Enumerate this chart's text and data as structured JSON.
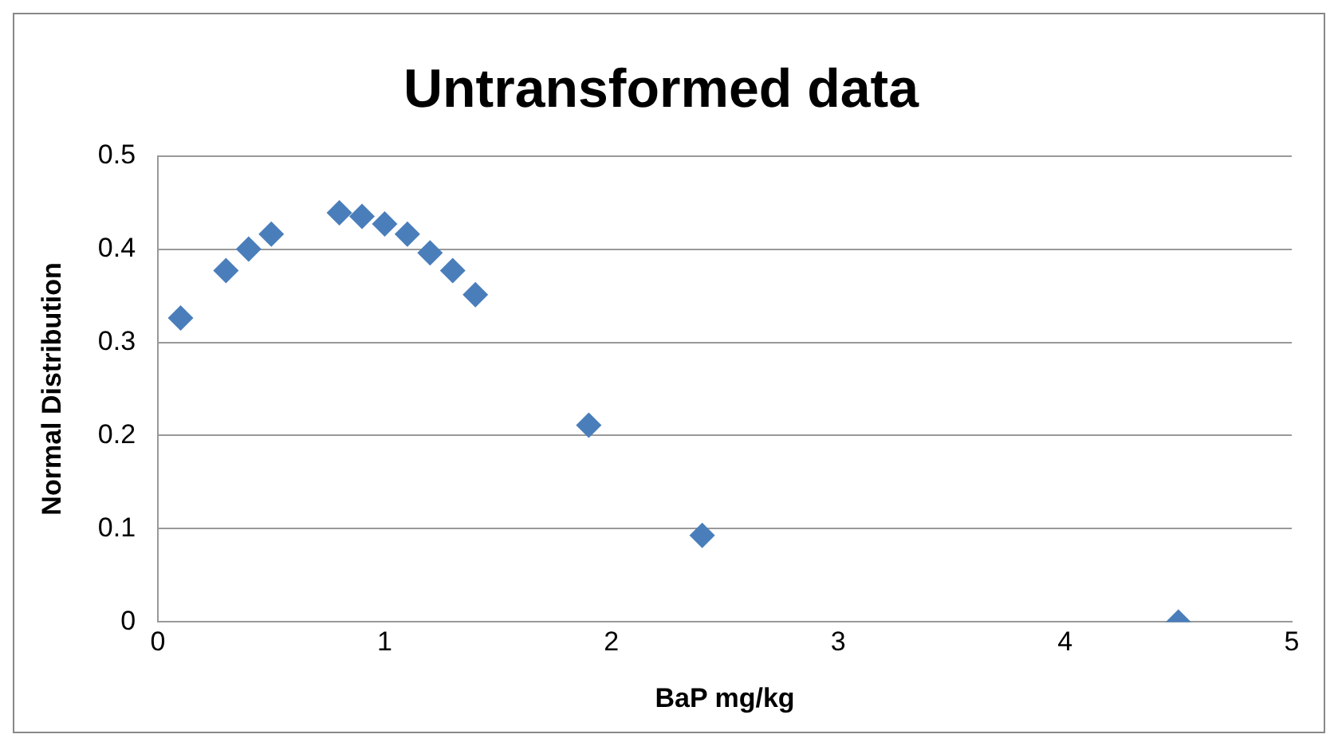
{
  "chart_data": {
    "type": "scatter",
    "title": "Untransformed data",
    "xlabel": "BaP mg/kg",
    "ylabel": "Normal Distribution",
    "x": [
      0.1,
      0.3,
      0.4,
      0.5,
      0.8,
      0.9,
      1.0,
      1.1,
      1.2,
      1.3,
      1.4,
      1.9,
      2.4,
      4.5
    ],
    "series": [
      {
        "color": "#4a7ebb",
        "values": [
          0.326,
          0.377,
          0.4,
          0.416,
          0.439,
          0.435,
          0.427,
          0.416,
          0.396,
          0.377,
          0.351,
          0.211,
          0.093,
          0.0
        ]
      }
    ],
    "xlim": [
      0,
      5
    ],
    "xticks": [
      0,
      1,
      2,
      3,
      4,
      5
    ],
    "ylim": [
      0,
      0.5
    ],
    "yticks": [
      0,
      0.1,
      0.2,
      0.3,
      0.4,
      0.5
    ],
    "grid": "y",
    "legend": false,
    "marker": "diamond"
  }
}
